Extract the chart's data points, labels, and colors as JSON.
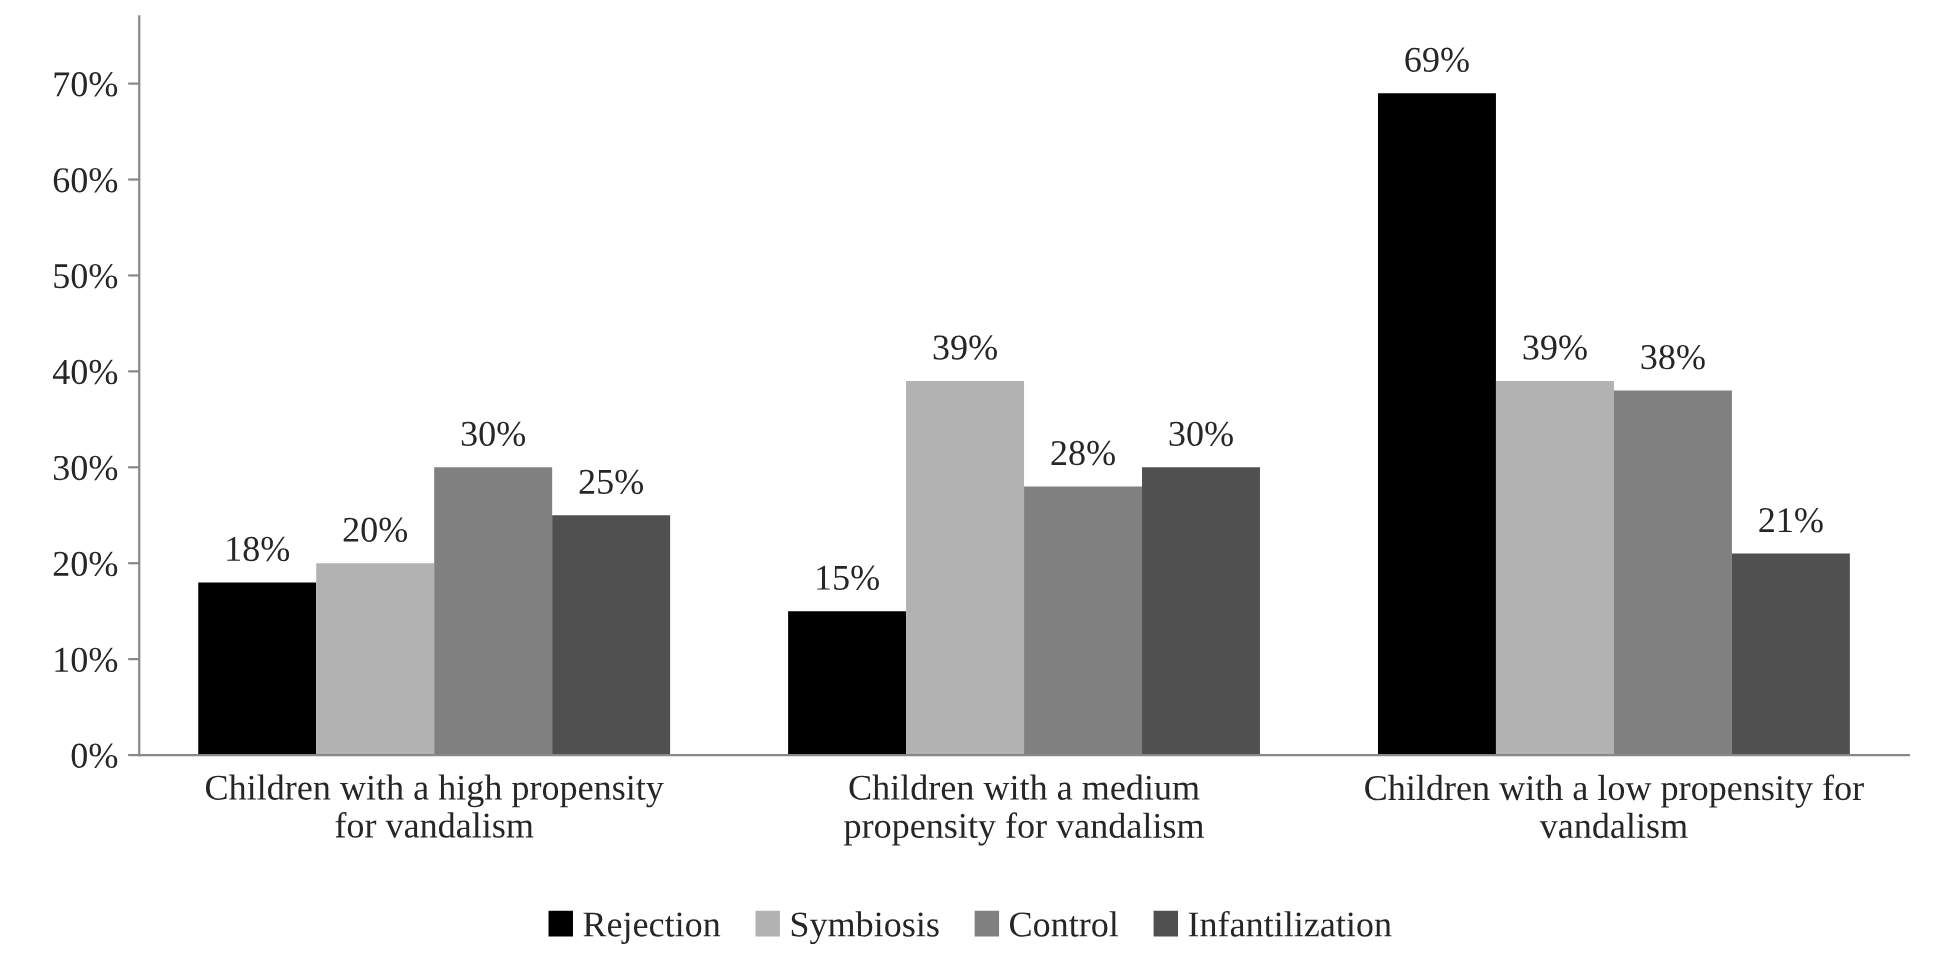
{
  "chart_data": {
    "type": "bar",
    "categories": [
      "Children with a high propensity\nfor vandalism",
      "Children with a medium\npropensity for vandalism",
      "Children with a low propensity for\nvandalism"
    ],
    "series": [
      {
        "name": "Rejection",
        "color": "#000000",
        "values": [
          18,
          15,
          69
        ],
        "value_labels": [
          "18%",
          "15%",
          "69%"
        ]
      },
      {
        "name": "Symbiosis",
        "color": "#b2b2b2",
        "values": [
          20,
          39,
          39
        ],
        "value_labels": [
          "20%",
          "39%",
          "39%"
        ]
      },
      {
        "name": "Control",
        "color": "#808080",
        "values": [
          30,
          28,
          38
        ],
        "value_labels": [
          "30%",
          "28%",
          "38%"
        ]
      },
      {
        "name": "Infantilization",
        "color": "#505050",
        "values": [
          25,
          30,
          21
        ],
        "value_labels": [
          "25%",
          "30%",
          "21%"
        ]
      }
    ],
    "ylim": [
      0,
      77
    ],
    "yticks": [
      {
        "value": 0,
        "label": "0%"
      },
      {
        "value": 10,
        "label": "10%"
      },
      {
        "value": 20,
        "label": "20%"
      },
      {
        "value": 30,
        "label": "30%"
      },
      {
        "value": 40,
        "label": "40%"
      },
      {
        "value": 50,
        "label": "50%"
      },
      {
        "value": 60,
        "label": "60%"
      },
      {
        "value": 70,
        "label": "70%"
      }
    ],
    "grid": false,
    "legend": "bottom"
  }
}
